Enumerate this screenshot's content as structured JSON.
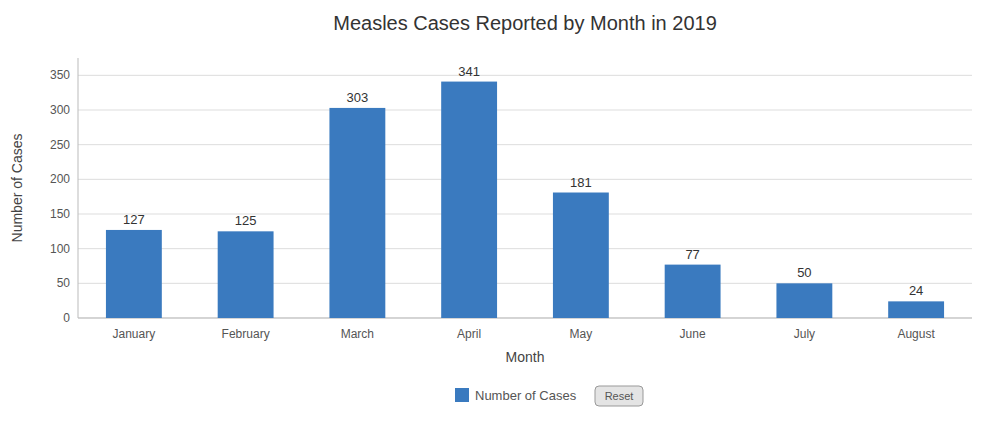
{
  "chart_data": {
    "type": "bar",
    "title": "Measles Cases Reported by Month in 2019",
    "xlabel": "Month",
    "ylabel": "Number of Cases",
    "categories": [
      "January",
      "February",
      "March",
      "April",
      "May",
      "June",
      "July",
      "August"
    ],
    "series": [
      {
        "name": "Number of Cases",
        "color": "#3a7abf",
        "values": [
          127,
          125,
          303,
          341,
          181,
          77,
          50,
          24
        ]
      }
    ],
    "ylim": [
      0,
      375
    ],
    "yticks": [
      0,
      50,
      100,
      150,
      200,
      250,
      300,
      350
    ],
    "grid": true,
    "data_labels": true,
    "legend": "bottom",
    "annotations": [
      "Reset"
    ]
  }
}
